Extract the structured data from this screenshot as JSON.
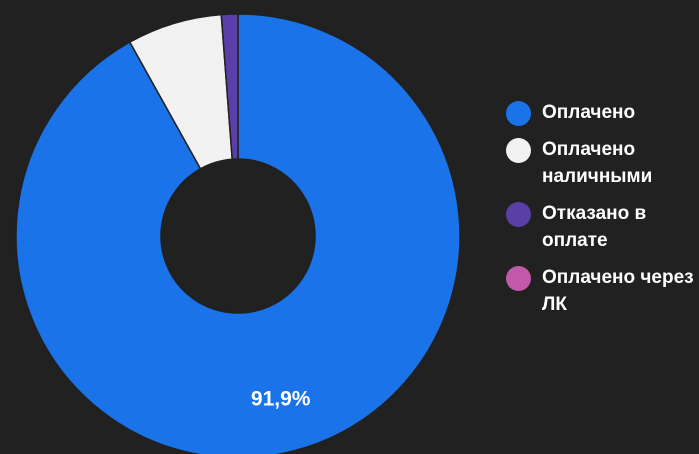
{
  "chart_data": {
    "type": "pie",
    "donut": true,
    "legend_position": "right",
    "slices": [
      {
        "label": "Оплачено",
        "value": 91.9,
        "color": "#1a73e8",
        "display": "91,9%"
      },
      {
        "label": "Оплачено наличными",
        "value": 6.9,
        "color": "#f1f1f1"
      },
      {
        "label": "Отказано в оплате",
        "value": 1.2,
        "color": "#5a3fa8"
      },
      {
        "label": "Оплачено через ЛК",
        "value": 0,
        "color": "#c158a8"
      }
    ]
  }
}
